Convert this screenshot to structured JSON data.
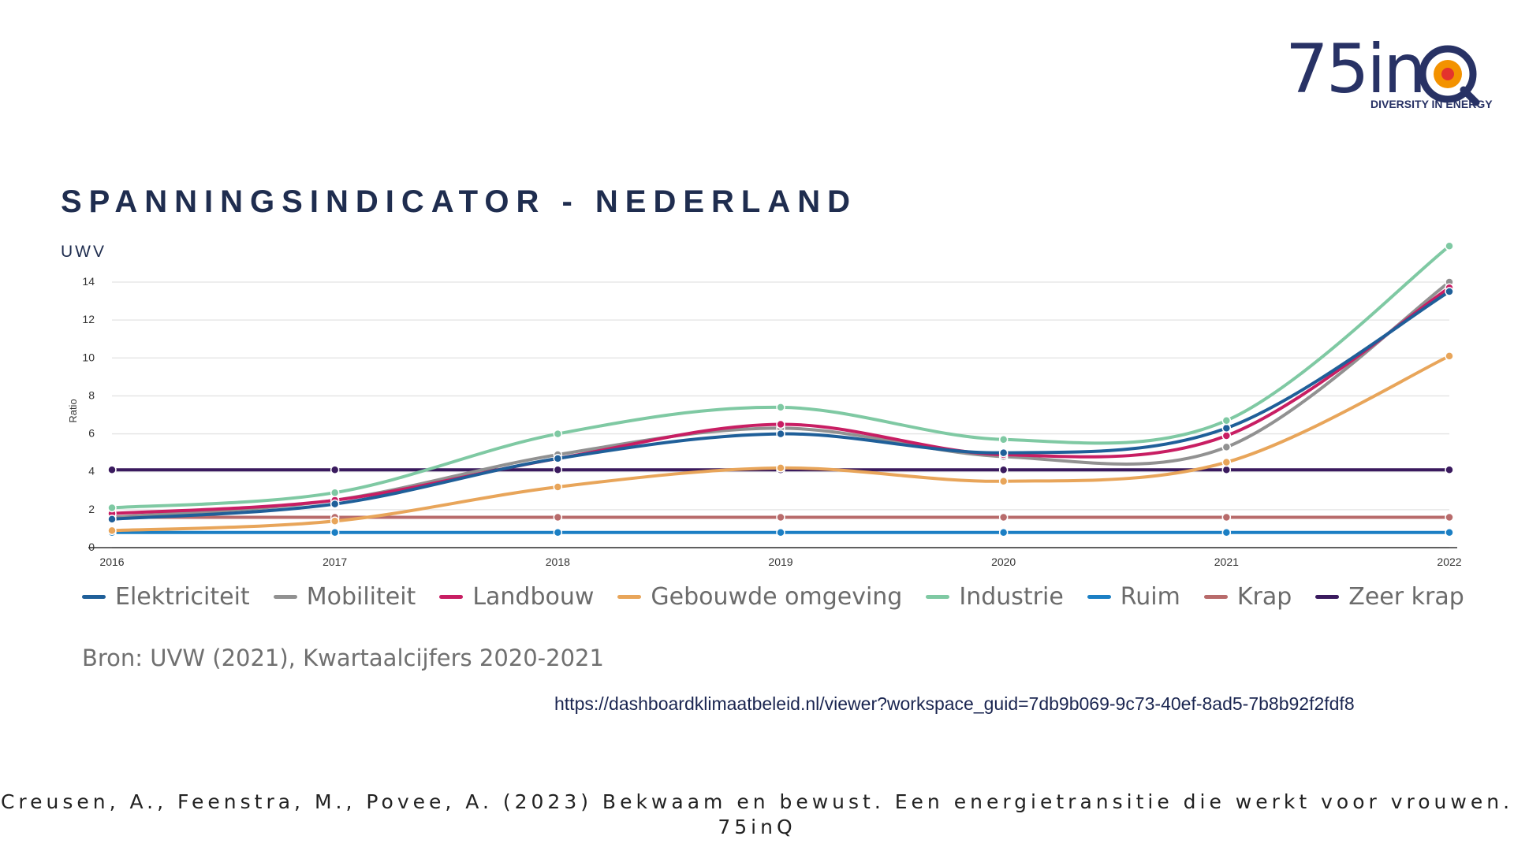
{
  "logo": {
    "text": "75in",
    "subtitle": "DIVERSITY IN ENERGY",
    "colors": {
      "navy": "#283265",
      "orange": "#f39200",
      "red": "#e4332d"
    }
  },
  "header": {
    "title": "SPANNINGSINDICATOR - NEDERLAND",
    "source_label": "UWV"
  },
  "chart_data": {
    "type": "line",
    "title": "SPANNINGSINDICATOR - NEDERLAND",
    "xlabel": "",
    "ylabel": "Ratio",
    "x": [
      "2016",
      "2017",
      "2018",
      "2019",
      "2020",
      "2021",
      "2022"
    ],
    "yticks": [
      0,
      2,
      4,
      6,
      8,
      10,
      12,
      14
    ],
    "ylim": [
      0,
      14
    ],
    "grid": true,
    "legend_position": "bottom",
    "series": [
      {
        "name": "Elektriciteit",
        "color": "#1f5f99",
        "values": [
          1.5,
          2.3,
          4.7,
          6.0,
          5.0,
          6.3,
          13.5
        ]
      },
      {
        "name": "Mobiliteit",
        "color": "#919191",
        "values": [
          1.6,
          2.5,
          4.9,
          6.3,
          4.8,
          5.3,
          14.0
        ]
      },
      {
        "name": "Landbouw",
        "color": "#c81e63",
        "values": [
          1.8,
          2.5,
          4.7,
          6.5,
          4.9,
          5.9,
          13.7
        ]
      },
      {
        "name": "Gebouwde omgeving",
        "color": "#e8a55a",
        "values": [
          0.9,
          1.4,
          3.2,
          4.2,
          3.5,
          4.5,
          10.1
        ]
      },
      {
        "name": "Industrie",
        "color": "#7fc9a3",
        "values": [
          2.1,
          2.9,
          6.0,
          7.4,
          5.7,
          6.7,
          15.9
        ]
      },
      {
        "name": "Ruim",
        "color": "#1b7fc4",
        "values": [
          0.8,
          0.8,
          0.8,
          0.8,
          0.8,
          0.8,
          0.8
        ]
      },
      {
        "name": "Krap",
        "color": "#b86b6b",
        "values": [
          1.6,
          1.6,
          1.6,
          1.6,
          1.6,
          1.6,
          1.6
        ]
      },
      {
        "name": "Zeer krap",
        "color": "#3a1a5e",
        "values": [
          4.1,
          4.1,
          4.1,
          4.1,
          4.1,
          4.1,
          4.1
        ]
      }
    ]
  },
  "footer": {
    "source": "Bron: UVW (2021), Kwartaalcijfers 2020-2021",
    "url": "https://dashboardklimaatbeleid.nl/viewer?workspace_guid=7db9b069-9c73-40ef-8ad5-7b8b92f2fdf8",
    "citation_line1": "Creusen, A., Feenstra, M., Povee, A. (2023) Bekwaam en bewust. Een energietransitie die werkt voor vrouwen.",
    "citation_line2": "75inQ"
  }
}
